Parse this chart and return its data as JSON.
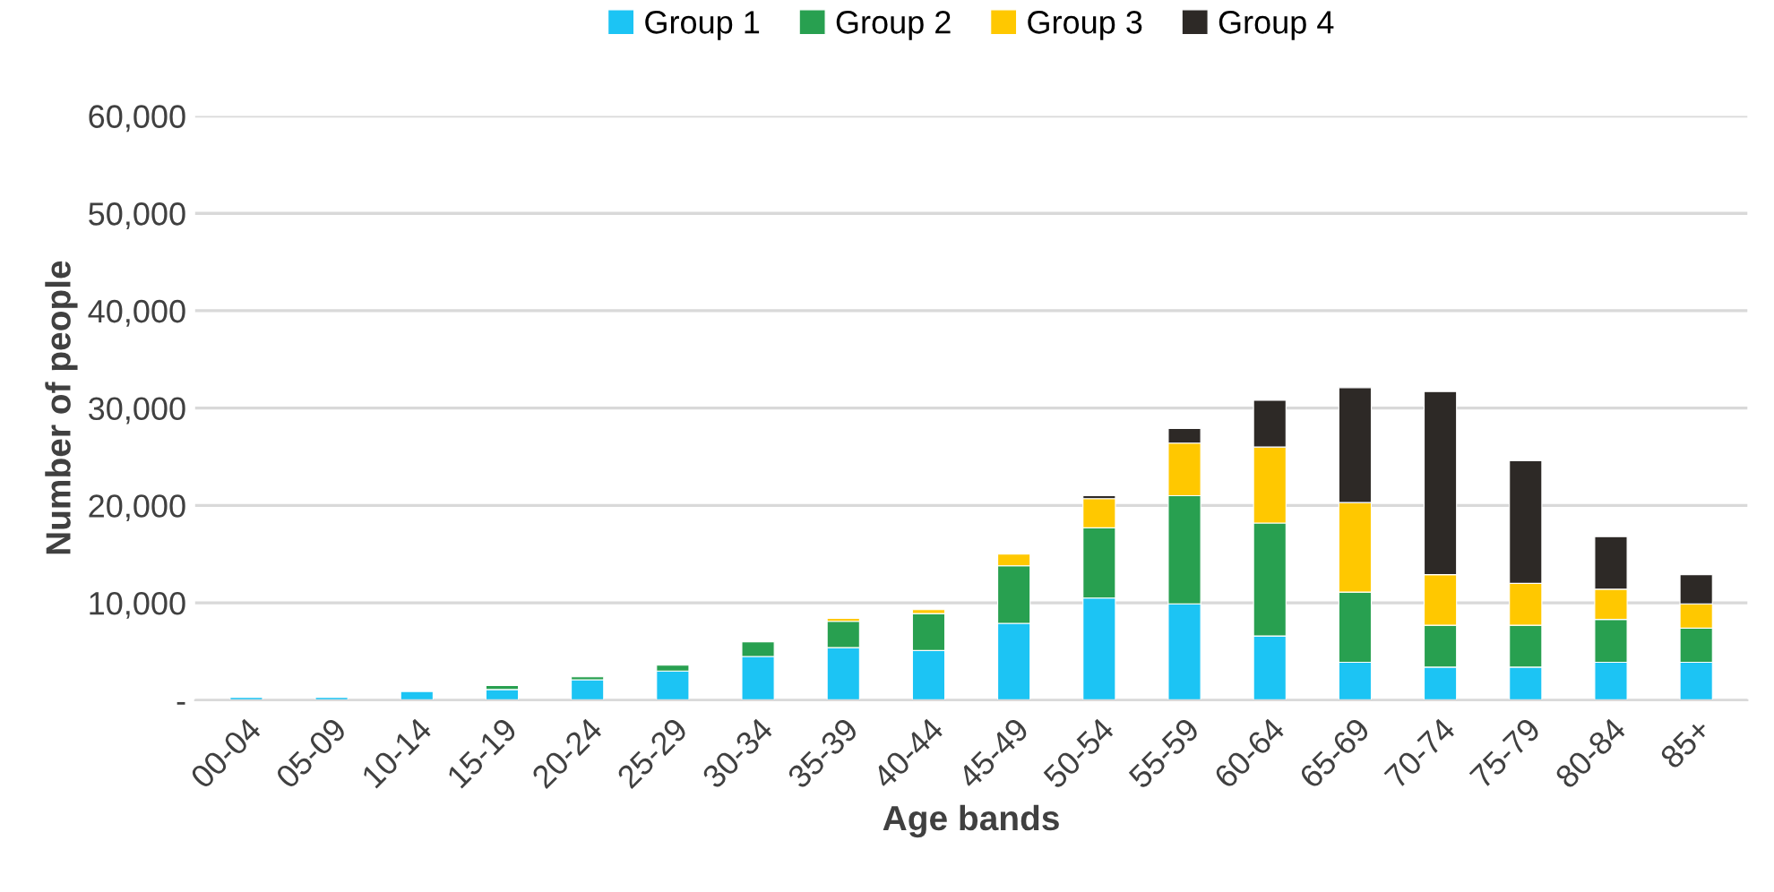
{
  "chart_data": {
    "type": "bar",
    "stacked": true,
    "xlabel": "Age bands",
    "ylabel": "Number of people",
    "categories": [
      "00-04",
      "05-09",
      "10-14",
      "15-19",
      "20-24",
      "25-29",
      "30-34",
      "35-39",
      "40-44",
      "45-49",
      "50-54",
      "55-59",
      "60-64",
      "65-69",
      "70-74",
      "75-79",
      "80-84",
      "85+"
    ],
    "series": [
      {
        "name": "Group 1",
        "color": "#1cc4f4",
        "values": [
          300,
          300,
          900,
          1100,
          2100,
          3000,
          4500,
          5400,
          5100,
          7900,
          10500,
          9900,
          6600,
          3900,
          3400,
          3400,
          3900,
          3900
        ]
      },
      {
        "name": "Group 2",
        "color": "#28a050",
        "values": [
          null,
          null,
          null,
          400,
          300,
          600,
          1500,
          2700,
          3800,
          5900,
          7200,
          11100,
          11600,
          7200,
          4300,
          4300,
          4400,
          3500
        ]
      },
      {
        "name": "Group 3",
        "color": "#ffc800",
        "values": [
          null,
          null,
          null,
          null,
          null,
          null,
          null,
          300,
          400,
          1200,
          3000,
          5400,
          7800,
          9200,
          5200,
          4300,
          3100,
          2500
        ]
      },
      {
        "name": "Group 4",
        "color": "#2d2926",
        "values": [
          null,
          null,
          null,
          null,
          null,
          null,
          null,
          null,
          null,
          null,
          300,
          1500,
          4800,
          11800,
          18800,
          12600,
          5400,
          3000
        ]
      }
    ],
    "ylim": [
      0,
      60000
    ],
    "yticks": [
      {
        "value": 0,
        "label": "-"
      },
      {
        "value": 10000,
        "label": "10,000"
      },
      {
        "value": 20000,
        "label": "20,000"
      },
      {
        "value": 30000,
        "label": "30,000"
      },
      {
        "value": 40000,
        "label": "40,000"
      },
      {
        "value": 50000,
        "label": "50,000"
      },
      {
        "value": 60000,
        "label": "60,000"
      }
    ],
    "grid": "y",
    "legend": "top"
  }
}
